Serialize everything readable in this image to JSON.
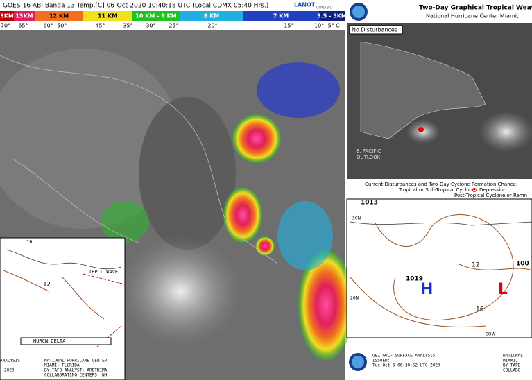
{
  "goes": {
    "title": "GOES-16 ABI Banda 13 Temp.[C] 06-Oct-2020 10:40:18 UTC (Local CDMX  05:40 Hrs.)",
    "logo": "LANOT",
    "logo2": "CONABIO",
    "bands": [
      "3KM",
      "13KM",
      "12 KM",
      "11 KM",
      "10 KM - 9 KM",
      "8 KM",
      "7 KM",
      "3.5 - 5KM"
    ],
    "temps": [
      "70°",
      "-65°",
      "-60°  -50°",
      "-45°",
      "-35°",
      "-30°",
      "-25°",
      "-20°",
      "-15°",
      "-10°   -5° C"
    ]
  },
  "inset": {
    "labels": [
      "TRPCL WAVE",
      "12",
      "16",
      "HURCN DELTA"
    ],
    "footer": [
      "ANALYSIS",
      "2020",
      "NATIONAL HURRICANE CENTER",
      "MIAMI, FLORIDA",
      "BY TAFB ANALYST: ARETHIMA",
      "COLLABORATING CENTERS: NH"
    ]
  },
  "outlook": {
    "title": "Two-Day Graphical Tropical Weat",
    "subtitle": "National Hurricane Center  Miami,",
    "status": "No Disturbances",
    "epac": [
      "E. PACIFIC",
      "OUTLOOK"
    ],
    "legend": {
      "heading": "Current Disturbances and Two-Day Cyclone Formation Chance:",
      "tropical": "Tropical or Sub-Tropical Cyclone:",
      "depression": "Depression",
      "post": "Post-Tropical Cyclone or Remn"
    }
  },
  "surface": {
    "labels": [
      "1013",
      "1019",
      "H",
      "L",
      "12",
      "16",
      "100",
      "26N",
      "30N",
      "SOW"
    ],
    "footer": [
      "OBZ GULF SURFACE ANALYSIS",
      "ISSUED:",
      "Tue Oct 6 06:30:52 UTC 2020",
      "NATIONAL",
      "MIAMI,",
      "BY TAFB",
      "COLLABO"
    ]
  }
}
